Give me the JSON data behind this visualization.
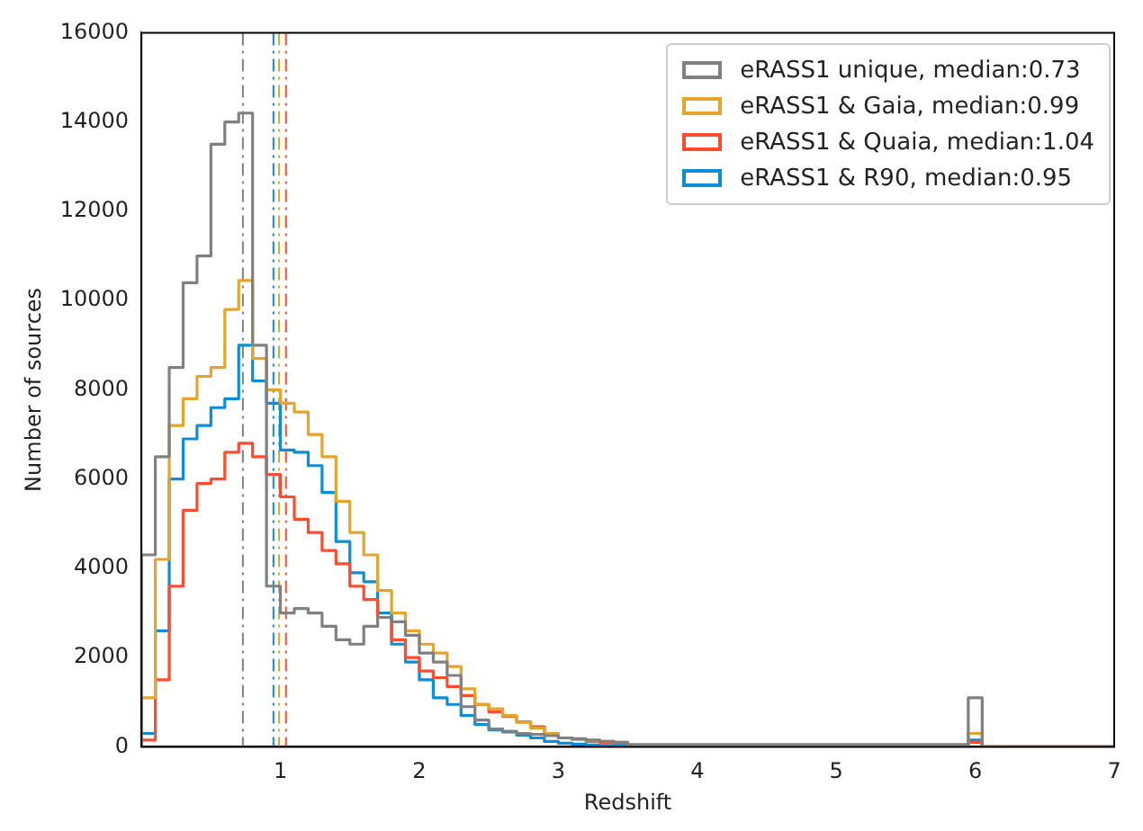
{
  "chart_data": {
    "type": "histogram",
    "xlabel": "Redshift",
    "ylabel": "Number of sources",
    "bins": [
      0,
      0.1,
      0.2,
      0.3,
      0.4,
      0.5,
      0.6,
      0.7,
      0.8,
      0.9,
      1.0,
      1.1,
      1.2,
      1.3,
      1.4,
      1.5,
      1.6,
      1.7,
      1.8,
      1.9,
      2.0,
      2.1,
      2.2,
      2.3,
      2.4,
      2.5,
      2.6,
      2.7,
      2.8,
      2.9,
      3.0,
      3.1,
      3.2,
      3.3,
      3.4,
      3.5,
      5.95,
      6.05,
      7
    ],
    "series": [
      {
        "name": "eRASS1 unique, median:0.73",
        "color": "#808080",
        "values": [
          4300,
          6500,
          8500,
          10400,
          11000,
          13500,
          14000,
          14200,
          9000,
          3600,
          3000,
          3100,
          3000,
          2700,
          2400,
          2300,
          2700,
          2900,
          2800,
          2500,
          2100,
          1900,
          1600,
          900,
          600,
          400,
          350,
          300,
          280,
          250,
          200,
          180,
          150,
          120,
          100,
          50,
          1100,
          0
        ]
      },
      {
        "name": "eRASS1 & Gaia, median:0.99",
        "color": "#e6a52a",
        "values": [
          1100,
          4200,
          7200,
          7800,
          8300,
          8500,
          9800,
          10450,
          8700,
          8000,
          7700,
          7500,
          7000,
          6500,
          5500,
          4800,
          4300,
          3500,
          3000,
          2600,
          2300,
          2100,
          1800,
          1300,
          950,
          850,
          700,
          550,
          420,
          300,
          200,
          160,
          140,
          120,
          100,
          20,
          300,
          0
        ]
      },
      {
        "name": "eRASS1 & Quaia, median:1.04",
        "color": "#ff4b2e",
        "values": [
          150,
          1500,
          3600,
          5300,
          5900,
          6000,
          6600,
          6800,
          6500,
          6100,
          5600,
          5100,
          4800,
          4400,
          4100,
          3600,
          3300,
          2900,
          2400,
          2000,
          1700,
          1550,
          1350,
          1150,
          950,
          780,
          680,
          560,
          450,
          300,
          200,
          160,
          120,
          100,
          80,
          20,
          100,
          0
        ]
      },
      {
        "name": "eRASS1 & R90, median:0.95",
        "color": "#0a8fd6",
        "values": [
          300,
          2600,
          6000,
          6900,
          7200,
          7600,
          7800,
          9000,
          8200,
          7700,
          6650,
          6600,
          6300,
          5700,
          4600,
          3900,
          3700,
          3000,
          2300,
          1900,
          1500,
          1100,
          950,
          700,
          500,
          380,
          330,
          260,
          200,
          120,
          80,
          60,
          40,
          30,
          20,
          10,
          150,
          0
        ]
      }
    ],
    "xlim": [
      0,
      7
    ],
    "xticks": [
      1,
      2,
      3,
      4,
      5,
      6,
      7
    ],
    "ylim": [
      0,
      16000
    ],
    "yticks": [
      0,
      2000,
      4000,
      6000,
      8000,
      10000,
      12000,
      14000,
      16000
    ],
    "grid": false,
    "legend": "top right",
    "ref_lines": [
      {
        "axis": "x",
        "value": 0.73,
        "color": "#808080",
        "line_style": "dashed"
      },
      {
        "axis": "x",
        "value": 0.99,
        "color": "#e6a52a",
        "line_style": "dashed"
      },
      {
        "axis": "x",
        "value": 1.04,
        "color": "#ff4b2e",
        "line_style": "dashed"
      },
      {
        "axis": "x",
        "value": 0.95,
        "color": "#0a8fd6",
        "line_style": "dashed"
      }
    ]
  }
}
